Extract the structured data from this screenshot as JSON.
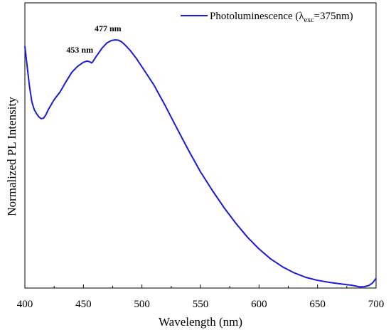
{
  "chart_data": {
    "type": "line",
    "title": "",
    "xlabel": "Wavelength (nm)",
    "ylabel": "Normalized PL Intensity",
    "xlim": [
      400,
      700
    ],
    "ylim": [
      0,
      1.0
    ],
    "xticks": [
      400,
      450,
      500,
      550,
      600,
      650,
      700
    ],
    "yticks_shown": false,
    "grid": false,
    "legend": {
      "placement": "top-right",
      "label_prefix": "Photoluminescence (λ",
      "label_sub": "exc",
      "label_suffix": "=375nm)"
    },
    "series": [
      {
        "name": "Photoluminescence (λexc=375nm)",
        "color": "#1a1ad6",
        "x": [
          400,
          402,
          404,
          406,
          408,
          410,
          412,
          414,
          416,
          418,
          420,
          425,
          430,
          435,
          440,
          445,
          450,
          453,
          455,
          457,
          458,
          460,
          463,
          466,
          470,
          474,
          477,
          480,
          483,
          486,
          490,
          495,
          500,
          510,
          520,
          530,
          540,
          550,
          560,
          570,
          580,
          590,
          600,
          610,
          620,
          630,
          640,
          650,
          660,
          670,
          680,
          686,
          690,
          694,
          697,
          700
        ],
        "y": [
          0.952,
          0.87,
          0.79,
          0.73,
          0.7,
          0.684,
          0.671,
          0.664,
          0.666,
          0.68,
          0.7,
          0.74,
          0.77,
          0.81,
          0.848,
          0.872,
          0.888,
          0.893,
          0.891,
          0.886,
          0.89,
          0.905,
          0.925,
          0.945,
          0.965,
          0.975,
          0.977,
          0.976,
          0.968,
          0.955,
          0.935,
          0.905,
          0.87,
          0.8,
          0.715,
          0.625,
          0.537,
          0.453,
          0.38,
          0.312,
          0.25,
          0.194,
          0.147,
          0.107,
          0.076,
          0.052,
          0.034,
          0.022,
          0.014,
          0.008,
          0.002,
          -0.004,
          -0.003,
          0.002,
          0.012,
          0.03
        ]
      }
    ],
    "annotations": [
      {
        "text": "453 nm",
        "x": 453,
        "y": 0.893
      },
      {
        "text": "477 nm",
        "x": 477,
        "y": 0.977
      }
    ]
  }
}
